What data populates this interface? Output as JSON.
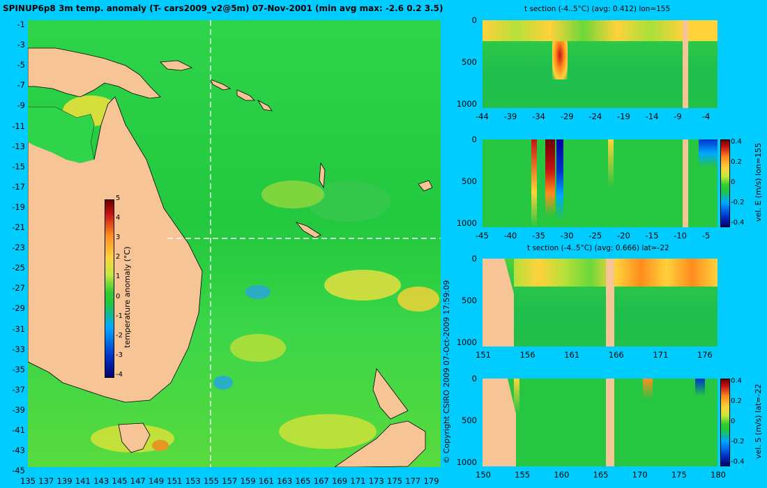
{
  "map": {
    "title": "SPINUP6p8 3m temp. anomaly (T- cars2009_v2@5m) 07-Nov-2001 (min avg max: -2.6 0.2 3.5)",
    "lat_labels": [
      "-1",
      "-3",
      "-5",
      "-7",
      "-9",
      "-11",
      "-13",
      "-15",
      "-17",
      "-19",
      "-21",
      "-23",
      "-25",
      "-27",
      "-29",
      "-31",
      "-33",
      "-35",
      "-37",
      "-39",
      "-41",
      "-43",
      "-45"
    ],
    "lon_labels": [
      "135",
      "137",
      "139",
      "141",
      "143",
      "145",
      "147",
      "149",
      "151",
      "153",
      "155",
      "157",
      "159",
      "161",
      "163",
      "165",
      "167",
      "169",
      "171",
      "173",
      "175",
      "177",
      "179"
    ],
    "colorbar": {
      "label": "temperature anomaly (°C)",
      "ticks": [
        "5",
        "4",
        "3",
        "2",
        "1",
        "0",
        "-1",
        "-2",
        "-3",
        "-4"
      ]
    },
    "section_lon_label": "155",
    "section_lat_label": "-22",
    "colors": {
      "background": "#00ccff",
      "land": "#f7c496",
      "ocean": "#2cc840"
    }
  },
  "copyright": "© Copyright CSIRO 2009   07-Oct-2009 17:59:09",
  "panels": [
    {
      "id": "t-lon",
      "title": "t section (-4..5°C) (avg: 0.412) lon=155",
      "y_ticks": [
        "0",
        "500",
        "1000"
      ],
      "x_ticks": [
        "-44",
        "-39",
        "-34",
        "-29",
        "-24",
        "-19",
        "-14",
        "-9",
        "-4"
      ]
    },
    {
      "id": "u-lon",
      "title": "",
      "y_ticks": [
        "0",
        "500",
        "1000"
      ],
      "x_ticks": [
        "-45",
        "-40",
        "-35",
        "-30",
        "-25",
        "-20",
        "-15",
        "-10",
        "-5"
      ],
      "cbar_label": "vel. E (m/s) lon=155",
      "cbar_ticks": [
        "0.4",
        "0.2",
        "0",
        "-0.2",
        "-0.4"
      ]
    },
    {
      "id": "t-lat",
      "title": "t section (-4..5°C) (avg: 0.666) lat=-22",
      "y_ticks": [
        "0",
        "500",
        "1000"
      ],
      "x_ticks": [
        "151",
        "156",
        "161",
        "166",
        "171",
        "176"
      ]
    },
    {
      "id": "v-lat",
      "title": "",
      "y_ticks": [
        "0",
        "500",
        "1000"
      ],
      "x_ticks": [
        "150",
        "155",
        "160",
        "165",
        "170",
        "175",
        "180"
      ],
      "cbar_label": "vel. S (m/s) lat=-22",
      "cbar_ticks": [
        "0.4",
        "0.2",
        "0",
        "-0.2",
        "-0.4"
      ]
    }
  ]
}
